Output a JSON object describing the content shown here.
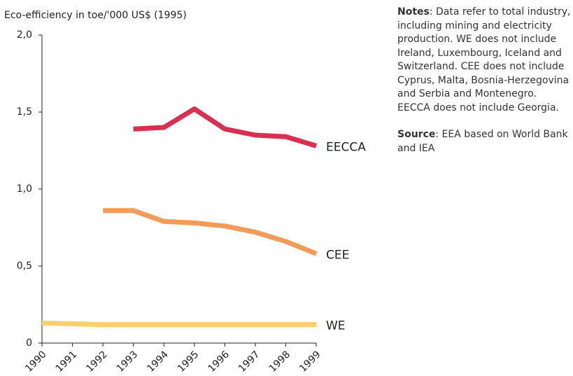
{
  "chart_data": {
    "type": "line",
    "y_axis_label": "Eco-efficiency in toe/'000 US$ (1995)",
    "categories": [
      "1990",
      "1991",
      "1992",
      "1993",
      "1994",
      "1995",
      "1996",
      "1997",
      "1998",
      "1999"
    ],
    "series": [
      {
        "name": "EECCA",
        "color": "#d9304f",
        "values": [
          null,
          null,
          null,
          1.39,
          1.4,
          1.52,
          1.39,
          1.35,
          1.34,
          1.28
        ]
      },
      {
        "name": "CEE",
        "color": "#f39c5a",
        "values": [
          null,
          null,
          0.86,
          0.86,
          0.79,
          0.78,
          0.76,
          0.72,
          0.66,
          0.58
        ]
      },
      {
        "name": "WE",
        "color": "#f9cf6f",
        "values": [
          0.13,
          0.125,
          0.12,
          0.12,
          0.12,
          0.12,
          0.12,
          0.12,
          0.12,
          0.12
        ]
      }
    ],
    "ylim": [
      0,
      2
    ],
    "yticks": [
      0,
      {
        "value": 0.5,
        "label": "0,5"
      },
      {
        "value": 1,
        "label": "1,0"
      },
      {
        "value": 1.5,
        "label": "1,5"
      },
      {
        "value": 2,
        "label": "2,0"
      }
    ],
    "notes": {
      "label": "Notes",
      "text": ": Data refer to total industry, including mining and electricity production. WE does not include Ireland, Luxembourg, Iceland and Switzerland. CEE does not include Cyprus, Malta, Bosnia-Herzegovina and Serbia and Montenegro. EECCA does not include Georgia."
    },
    "source": {
      "label": "Source",
      "text": ": EEA based on World Bank and IEA"
    }
  }
}
